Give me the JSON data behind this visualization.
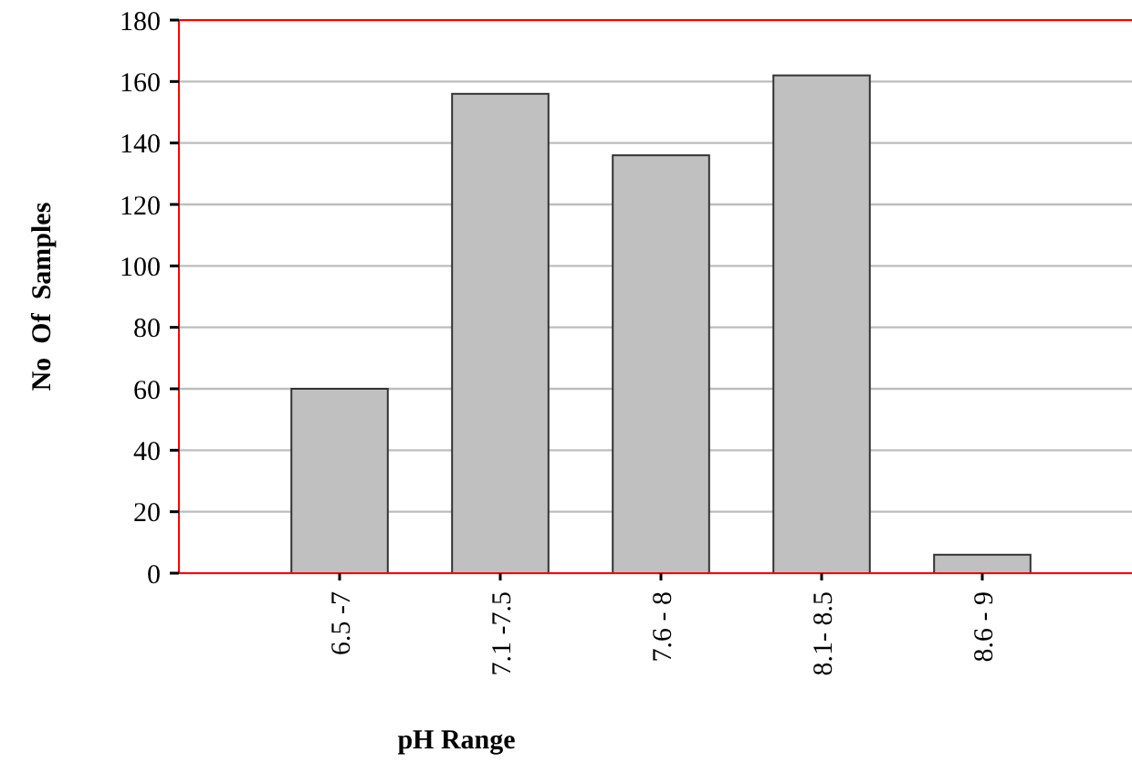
{
  "chart_data": {
    "type": "bar",
    "xlabel": "pH Range",
    "ylabel": "No  Of  Samples",
    "categories": [
      "6.5 -7",
      "7.1 -7.5",
      "7.6 - 8",
      "8.1- 8.5",
      "8.6 - 9"
    ],
    "values": [
      60,
      156,
      136,
      162,
      6
    ],
    "color": "#c0c0c0",
    "ylim": [
      0,
      180
    ],
    "yticks": [
      0,
      20,
      40,
      60,
      80,
      100,
      120,
      140,
      160,
      180
    ],
    "grid": "y"
  }
}
